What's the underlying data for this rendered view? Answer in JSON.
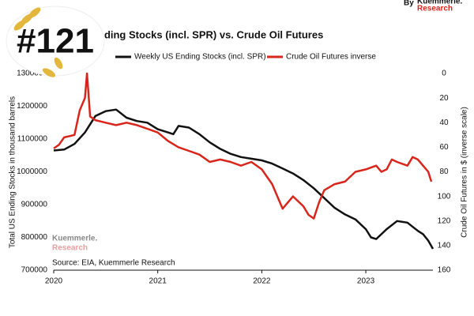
{
  "chart_data": {
    "type": "line",
    "title": "nding Stocks (incl. SPR) vs. Crude Oil Futures",
    "badge": "#121",
    "byline": "By",
    "brand": "Kuemmerle.",
    "brand_sub": "Research",
    "source": "Source: EIA, Kuemmerle Research",
    "ylabel": "Total US Ending Stocks in thousand barrels",
    "y2label": "Crude Oil Futures in $ (inverse scale)",
    "xlim": [
      2020,
      2023.645
    ],
    "xticks": [
      2020,
      2021,
      2022,
      2023
    ],
    "ylim": [
      700000,
      1300000
    ],
    "yticks": [
      700000,
      800000,
      900000,
      1000000,
      1100000,
      1200000,
      1300000
    ],
    "y2lim": [
      160,
      0
    ],
    "y2ticks": [
      0,
      20,
      40,
      60,
      80,
      100,
      120,
      140,
      160
    ],
    "series": [
      {
        "name": "Weekly US Ending Stocks (incl. SPR)",
        "color": "#111111",
        "x": [
          2020.0,
          2020.1,
          2020.2,
          2020.3,
          2020.4,
          2020.5,
          2020.6,
          2020.7,
          2020.8,
          2020.9,
          2021.0,
          2021.1,
          2021.15,
          2021.2,
          2021.3,
          2021.4,
          2021.5,
          2021.6,
          2021.7,
          2021.8,
          2021.9,
          2022.0,
          2022.1,
          2022.2,
          2022.3,
          2022.4,
          2022.5,
          2022.6,
          2022.7,
          2022.8,
          2022.9,
          2023.0,
          2023.05,
          2023.1,
          2023.2,
          2023.3,
          2023.4,
          2023.5,
          2023.55,
          2023.6,
          2023.645
        ],
        "values": [
          1065000,
          1068000,
          1085000,
          1120000,
          1170000,
          1185000,
          1190000,
          1165000,
          1155000,
          1150000,
          1130000,
          1120000,
          1115000,
          1140000,
          1135000,
          1115000,
          1090000,
          1070000,
          1055000,
          1045000,
          1040000,
          1035000,
          1025000,
          1010000,
          995000,
          975000,
          950000,
          920000,
          890000,
          870000,
          855000,
          825000,
          800000,
          795000,
          825000,
          850000,
          845000,
          820000,
          810000,
          790000,
          765000
        ]
      },
      {
        "name": "Crude Oil Futures inverse",
        "color": "#d9261c",
        "axis": "y2",
        "x": [
          2020.0,
          2020.05,
          2020.1,
          2020.2,
          2020.25,
          2020.3,
          2020.32,
          2020.35,
          2020.4,
          2020.5,
          2020.6,
          2020.7,
          2020.8,
          2020.9,
          2021.0,
          2021.1,
          2021.2,
          2021.3,
          2021.4,
          2021.5,
          2021.6,
          2021.7,
          2021.8,
          2021.9,
          2022.0,
          2022.1,
          2022.15,
          2022.2,
          2022.3,
          2022.4,
          2022.45,
          2022.5,
          2022.55,
          2022.6,
          2022.7,
          2022.8,
          2022.9,
          2023.0,
          2023.1,
          2023.15,
          2023.2,
          2023.25,
          2023.3,
          2023.4,
          2023.45,
          2023.5,
          2023.55,
          2023.6,
          2023.63
        ],
        "values": [
          61,
          58,
          52,
          50,
          30,
          20,
          0,
          35,
          38,
          40,
          42,
          40,
          42,
          45,
          48,
          55,
          60,
          63,
          66,
          72,
          70,
          72,
          75,
          72,
          78,
          90,
          100,
          110,
          100,
          108,
          115,
          118,
          105,
          95,
          90,
          88,
          80,
          78,
          75,
          80,
          78,
          70,
          72,
          75,
          68,
          70,
          75,
          80,
          88
        ]
      }
    ]
  }
}
